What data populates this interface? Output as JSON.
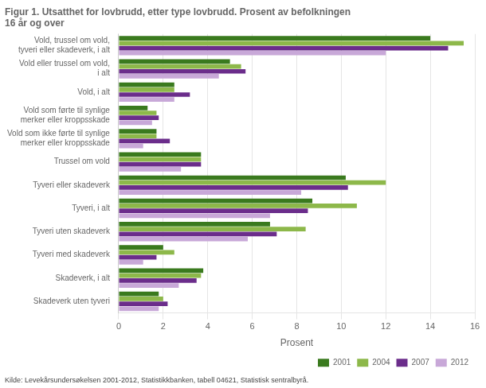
{
  "chart_data": {
    "type": "bar",
    "orientation": "horizontal",
    "title": "Figur 1. Utsatthet for lovbrudd, etter type lovbrudd. Prosent av befolkningen\n16 år og over",
    "xlabel": "Prosent",
    "annotations": [
      "Kilde: Levekårsundersøkelsen 2001-2012, Statistikkbanken, tabell 04621, Statistisk sentralbyrå."
    ],
    "categories": [
      "Vold, trussel om vold,\ntyveri eller skadeverk, i alt",
      "Vold eller trussel om vold,\ni alt",
      "Vold, i alt",
      "Vold som førte til synlige\nmerker eller kroppsskade",
      "Vold som ikke førte til synlige\nmerker eller kroppsskade",
      "Trussel om vold",
      "Tyveri eller skadeverk",
      "Tyveri, i alt",
      "Tyveri uten skadeverk",
      "Tyveri med skadeverk",
      "Skadeverk, i alt",
      "Skadeverk uten tyveri"
    ],
    "series": [
      {
        "name": "2001",
        "color": "#3a7a1e",
        "values": [
          14.0,
          5.0,
          2.5,
          1.3,
          1.7,
          3.7,
          10.2,
          8.7,
          6.8,
          2.0,
          3.8,
          1.8
        ]
      },
      {
        "name": "2004",
        "color": "#8db84a",
        "values": [
          15.5,
          5.5,
          2.5,
          1.7,
          1.7,
          3.7,
          12.0,
          10.7,
          8.4,
          2.5,
          3.7,
          2.0
        ]
      },
      {
        "name": "2007",
        "color": "#6b2d8b",
        "values": [
          14.8,
          5.7,
          3.2,
          1.8,
          2.3,
          3.7,
          10.3,
          8.5,
          7.1,
          1.7,
          3.5,
          2.2
        ]
      },
      {
        "name": "2012",
        "color": "#c8a8d8",
        "values": [
          12.0,
          4.5,
          2.5,
          1.5,
          1.1,
          2.8,
          8.2,
          6.8,
          5.8,
          1.1,
          2.7,
          1.8
        ]
      }
    ],
    "xlim": [
      0,
      16
    ],
    "xticks": [
      0,
      2,
      4,
      6,
      8,
      10,
      12,
      14,
      16
    ],
    "grid": true,
    "legend": "lower right"
  }
}
